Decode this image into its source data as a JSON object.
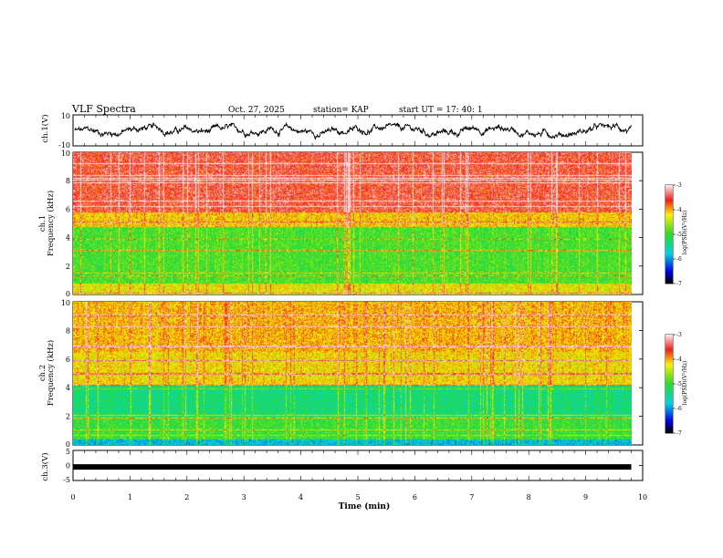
{
  "header": {
    "title": "VLF Spectra",
    "date": "Oct. 27, 2025",
    "station": "station= KAP",
    "start": "start  UT  =   17: 40: 1"
  },
  "chart_data": [
    {
      "type": "line",
      "name": "ch1-waveform",
      "ylabel": "ch.1(V)",
      "ylim": [
        -10,
        10
      ],
      "yticks": [
        "10",
        "-10"
      ],
      "xlim": [
        0,
        10
      ],
      "trace_range": [
        -5,
        4
      ]
    },
    {
      "type": "heatmap",
      "name": "ch1-spectrogram",
      "ylabel_line1": "ch.1",
      "ylabel_line2": "Frequency (kHz)",
      "ylim": [
        0,
        10
      ],
      "yticks": [
        "0",
        "2",
        "4",
        "6",
        "8",
        "10"
      ],
      "xlim": [
        0,
        9.8
      ],
      "colorbar": {
        "label": "log(PSD)(V²/Hz)",
        "range": [
          -7,
          -3
        ],
        "ticks": [
          "-3",
          "-4",
          "-5",
          "-6",
          "-7"
        ]
      }
    },
    {
      "type": "heatmap",
      "name": "ch2-spectrogram",
      "ylabel_line1": "ch.2",
      "ylabel_line2": "Frequency (kHz)",
      "ylim": [
        0,
        10
      ],
      "yticks": [
        "0",
        "2",
        "4",
        "6",
        "8",
        "10"
      ],
      "xlim": [
        0,
        9.8
      ],
      "colorbar": {
        "label": "log(PSD)(V²/Hz)",
        "range": [
          -7,
          -3
        ],
        "ticks": [
          "-3",
          "-4",
          "-5",
          "-6",
          "-7"
        ]
      }
    },
    {
      "type": "line",
      "name": "ch3-waveform",
      "ylabel": "ch.3(V)",
      "ylim": [
        -5,
        5
      ],
      "yticks": [
        "5",
        "0",
        "-5"
      ],
      "xlim": [
        0,
        10
      ],
      "trace_value": -0.5,
      "xlabel": "Time (min)",
      "xticks": [
        "0",
        "1",
        "2",
        "3",
        "4",
        "5",
        "6",
        "7",
        "8",
        "9",
        "10"
      ]
    }
  ]
}
